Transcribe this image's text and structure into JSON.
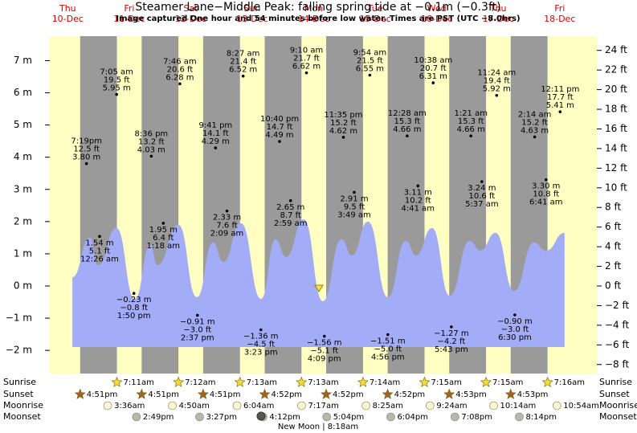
{
  "title": "Steamer Lane−Middle Peak: falling  spring tide at −0.1m (−0.3ft)",
  "subtitle": "Image captured One hour and 54 minutes before low water. Times are PST (UTC −8.0hrs)",
  "chart_data": {
    "type": "tide",
    "categories": [
      "Thu",
      "Fri",
      "Sat",
      "Sun",
      "Mon",
      "Tue",
      "Wed",
      "Thu",
      "Fri"
    ],
    "dates": [
      "10-Dec",
      "11-Dec",
      "12-Dec",
      "13-Dec",
      "14-Dec",
      "15-Dec",
      "16-Dec",
      "17-Dec",
      "18-Dec"
    ],
    "xlim": [
      5.0,
      218.5
    ],
    "ylim": [
      -2.72,
      7.76
    ],
    "yticks": [
      {
        "value": -2,
        "label": "−2 m"
      },
      {
        "value": -1,
        "label": "−1 m"
      },
      {
        "value": 0,
        "label": "0 m"
      },
      {
        "value": 1,
        "label": "1 m"
      },
      {
        "value": 2,
        "label": "2 m"
      },
      {
        "value": 3,
        "label": "3 m"
      },
      {
        "value": 4,
        "label": "4 m"
      },
      {
        "value": 5,
        "label": "5 m"
      },
      {
        "value": 6,
        "label": "6 m"
      },
      {
        "value": 7,
        "label": "7 m"
      }
    ],
    "y2lim": [
      -8.92,
      25.45
    ],
    "y2ticks": [
      {
        "value": -8,
        "label": "−8 ft"
      },
      {
        "value": -6,
        "label": "−6 ft"
      },
      {
        "value": -4,
        "label": "−4 ft"
      },
      {
        "value": -2,
        "label": "−2 ft"
      },
      {
        "value": 0,
        "label": "0 ft"
      },
      {
        "value": 2,
        "label": "2 ft"
      },
      {
        "value": 4,
        "label": "4 ft"
      },
      {
        "value": 6,
        "label": "6 ft"
      },
      {
        "value": 8,
        "label": "8 ft"
      },
      {
        "value": 10,
        "label": "10 ft"
      },
      {
        "value": 12,
        "label": "12 ft"
      },
      {
        "value": 14,
        "label": "14 ft"
      },
      {
        "value": 16,
        "label": "16 ft"
      },
      {
        "value": 18,
        "label": "18 ft"
      },
      {
        "value": 20,
        "label": "20 ft"
      },
      {
        "value": 22,
        "label": "22 ft"
      },
      {
        "value": 24,
        "label": "24 ft"
      }
    ],
    "tide_curve": {
      "color": "#a3acf7",
      "x": [
        13.8,
        20.7,
        23.8,
        31.0,
        38.2,
        44.2,
        47.0,
        55.2,
        62.4,
        68.7,
        72.7,
        79.6,
        87.5,
        93.1,
        97.2,
        104.1,
        111.6,
        118.8,
        122.9,
        129.2,
        137.0,
        143.9,
        148.0,
        154.2,
        161.1,
        168.9,
        173.0,
        179.0,
        186.2,
        194.0,
        198.7,
        205.9
      ],
      "values": [
        0.27,
        1.5,
        0.65,
        1.8,
        -0.4,
        1.27,
        0.65,
        1.9,
        -0.35,
        1.35,
        0.75,
        1.95,
        -0.4,
        1.45,
        0.9,
        2.07,
        -0.47,
        1.45,
        0.95,
        2.0,
        -0.35,
        1.4,
        0.95,
        1.8,
        -0.3,
        1.4,
        1.1,
        1.65,
        -0.15,
        1.35,
        1.1,
        1.65
      ]
    },
    "extremes": {
      "x": [
        19.32,
        24.43,
        31.08,
        37.83,
        44.6,
        49.3,
        55.77,
        62.62,
        69.68,
        74.15,
        80.45,
        87.38,
        94.67,
        98.98,
        105.17,
        112.15,
        119.58,
        123.82,
        129.9,
        136.93,
        144.47,
        148.68,
        154.63,
        161.72,
        169.35,
        173.62,
        179.4,
        186.5,
        194.23,
        198.68,
        204.18
      ],
      "values": [
        3.8,
        1.54,
        5.95,
        -0.23,
        4.03,
        1.95,
        6.28,
        -0.91,
        4.29,
        2.33,
        6.52,
        -1.36,
        4.49,
        2.65,
        6.62,
        -1.56,
        4.62,
        2.91,
        6.55,
        -1.51,
        4.66,
        3.11,
        6.31,
        -1.27,
        4.66,
        3.24,
        5.92,
        -0.9,
        4.63,
        3.3,
        5.41
      ],
      "labels": [
        [
          "7:19pm",
          "12.5 ft",
          "3.80 m"
        ],
        [
          "1.54 m",
          "5.1 ft",
          "12:26 am"
        ],
        [
          "7:05 am",
          "19.5 ft",
          "5.95 m"
        ],
        [
          "−0.23 m",
          "−0.8 ft",
          "1:50 pm"
        ],
        [
          "8:36 pm",
          "13.2 ft",
          "4.03 m"
        ],
        [
          "1.95 m",
          "6.4 ft",
          "1:18 am"
        ],
        [
          "7:46 am",
          "20.6 ft",
          "6.28 m"
        ],
        [
          "−0.91 m",
          "−3.0 ft",
          "2:37 pm"
        ],
        [
          "9:41 pm",
          "14.1 ft",
          "4.29 m"
        ],
        [
          "2.33 m",
          "7.6 ft",
          "2:09 am"
        ],
        [
          "8:27 am",
          "21.4 ft",
          "6.52 m"
        ],
        [
          "−1.36 m",
          "−4.5 ft",
          "3:23 pm"
        ],
        [
          "10:40 pm",
          "14.7 ft",
          "4.49 m"
        ],
        [
          "2.65 m",
          "8.7 ft",
          "2:59 am"
        ],
        [
          "9:10 am",
          "21.7 ft",
          "6.62 m"
        ],
        [
          "−1.56 m",
          "−5.1 ft",
          "4:09 pm"
        ],
        [
          "11:35 pm",
          "15.2 ft",
          "4.62 m"
        ],
        [
          "2.91 m",
          "9.5 ft",
          "3:49 am"
        ],
        [
          "9:54 am",
          "21.5 ft",
          "6.55 m"
        ],
        [
          "−1.51 m",
          "−5.0 ft",
          "4:56 pm"
        ],
        [
          "12:28 am",
          "15.3 ft",
          "4.66 m"
        ],
        [
          "3.11 m",
          "10.2 ft",
          "4:41 am"
        ],
        [
          "10:38 am",
          "20.7 ft",
          "6.31 m"
        ],
        [
          "−1.27 m",
          "−4.2 ft",
          "5:43 pm"
        ],
        [
          "1:21 am",
          "15.3 ft",
          "4.66 m"
        ],
        [
          "3.24 m",
          "10.6 ft",
          "5:37 am"
        ],
        [
          "11:24 am",
          "19.4 ft",
          "5.92 m"
        ],
        [
          "−0.90 m",
          "−3.0 ft",
          "6:30 pm"
        ],
        [
          "2:14 am",
          "15.2 ft",
          "4.63 m"
        ],
        [
          "3.30 m",
          "10.8 ft",
          "6:41 am"
        ],
        [
          "12:11 pm",
          "17.7 ft",
          "5.41 m"
        ]
      ]
    },
    "row_labels": [
      "Sunrise",
      "Sunset",
      "Moonrise",
      "Moonset"
    ],
    "sunrise": [
      null,
      "7:11am",
      "7:12am",
      "7:13am",
      "7:13am",
      "7:14am",
      "7:15am",
      "7:15am",
      "7:16am"
    ],
    "sunset": [
      "4:51pm",
      "4:51pm",
      "4:51pm",
      "4:52pm",
      "4:52pm",
      "4:52pm",
      "4:53pm",
      "4:53pm",
      null
    ],
    "moonrise": [
      null,
      "3:36am",
      "4:50am",
      "6:04am",
      "7:17am",
      "8:25am",
      "9:24am",
      "10:14am",
      "10:54am"
    ],
    "moonset": [
      null,
      "2:49pm",
      "3:27pm",
      "4:12pm",
      "5:04pm",
      "6:04pm",
      "7:08pm",
      "8:14pm",
      null
    ],
    "moon_phase": "New Moon | 8:18am"
  }
}
